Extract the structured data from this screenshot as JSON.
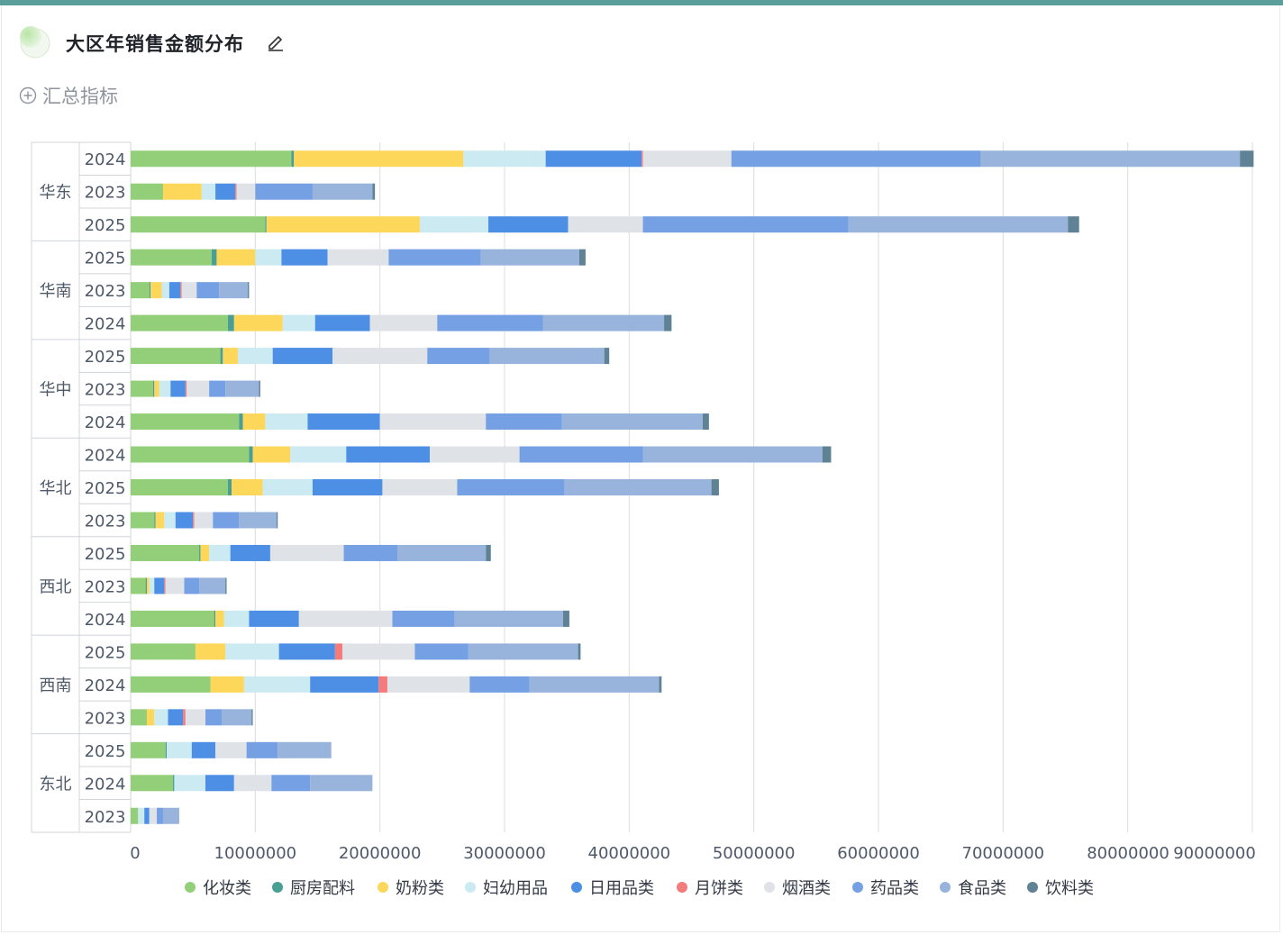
{
  "header": {
    "title": "大区年销售金额分布",
    "edit_icon": "pencil-icon",
    "add_metric_label": "汇总指标",
    "add_metric_icon": "plus-circle-icon"
  },
  "chart_data": {
    "type": "bar",
    "orientation": "horizontal",
    "stacked": true,
    "title": "",
    "xlabel": "",
    "ylabel": "",
    "xlim": [
      0,
      90000000
    ],
    "x_ticks": [
      "0",
      "10000000",
      "20000000",
      "30000000",
      "40000000",
      "50000000",
      "60000000",
      "70000000",
      "80000000",
      "90000000"
    ],
    "grid": true,
    "legend_position": "bottom",
    "series_names": [
      "化妆类",
      "厨房配料",
      "奶粉类",
      "妇幼用品",
      "日用品类",
      "月饼类",
      "烟酒类",
      "药品类",
      "食品类",
      "饮料类"
    ],
    "series_colors": [
      "#93cf78",
      "#4a9f94",
      "#fdd75a",
      "#cbeaf1",
      "#4c8fe4",
      "#f47b7b",
      "#dfe3e8",
      "#75a0e4",
      "#98b3dc",
      "#5f8295"
    ],
    "regions": [
      {
        "name": "华东",
        "rows": [
          {
            "year": "2024",
            "values": [
              12900000,
              200000,
              13600000,
              6600000,
              7700000,
              100000,
              7100000,
              20000000,
              20800000,
              1100000
            ]
          },
          {
            "year": "2023",
            "values": [
              2600000,
              0,
              3100000,
              1100000,
              1600000,
              100000,
              1500000,
              4600000,
              4800000,
              200000
            ]
          },
          {
            "year": "2025",
            "values": [
              10800000,
              100000,
              12300000,
              5500000,
              6400000,
              0,
              6000000,
              16500000,
              17600000,
              900000
            ]
          }
        ]
      },
      {
        "name": "华南",
        "rows": [
          {
            "year": "2025",
            "values": [
              6500000,
              400000,
              3100000,
              2100000,
              3700000,
              0,
              4900000,
              7400000,
              7900000,
              500000
            ]
          },
          {
            "year": "2023",
            "values": [
              1500000,
              100000,
              900000,
              600000,
              900000,
              100000,
              1200000,
              1800000,
              2300000,
              100000
            ]
          },
          {
            "year": "2024",
            "values": [
              7800000,
              500000,
              3900000,
              2600000,
              4400000,
              0,
              5400000,
              8500000,
              9700000,
              600000
            ]
          }
        ]
      },
      {
        "name": "华中",
        "rows": [
          {
            "year": "2025",
            "values": [
              7200000,
              200000,
              1200000,
              2800000,
              4800000,
              0,
              7600000,
              5000000,
              9200000,
              400000
            ]
          },
          {
            "year": "2023",
            "values": [
              1800000,
              100000,
              400000,
              900000,
              1200000,
              100000,
              1800000,
              1300000,
              2700000,
              100000
            ]
          },
          {
            "year": "2024",
            "values": [
              8700000,
              300000,
              1800000,
              3400000,
              5800000,
              0,
              8500000,
              6100000,
              11300000,
              500000
            ]
          }
        ]
      },
      {
        "name": "华北",
        "rows": [
          {
            "year": "2024",
            "values": [
              9500000,
              300000,
              3000000,
              4500000,
              6700000,
              0,
              7200000,
              9900000,
              14400000,
              700000
            ]
          },
          {
            "year": "2025",
            "values": [
              7800000,
              300000,
              2500000,
              4000000,
              5600000,
              0,
              6000000,
              8600000,
              11800000,
              600000
            ]
          },
          {
            "year": "2023",
            "values": [
              1900000,
              100000,
              700000,
              900000,
              1400000,
              100000,
              1500000,
              2100000,
              3000000,
              100000
            ]
          }
        ]
      },
      {
        "name": "西北",
        "rows": [
          {
            "year": "2025",
            "values": [
              5500000,
              100000,
              700000,
              1700000,
              3200000,
              0,
              5900000,
              4300000,
              7100000,
              400000
            ]
          },
          {
            "year": "2023",
            "values": [
              1200000,
              100000,
              200000,
              400000,
              800000,
              100000,
              1500000,
              1200000,
              2100000,
              100000
            ]
          },
          {
            "year": "2024",
            "values": [
              6700000,
              100000,
              700000,
              2000000,
              4000000,
              0,
              7500000,
              5000000,
              8700000,
              500000
            ]
          }
        ]
      },
      {
        "name": "西南",
        "rows": [
          {
            "year": "2025",
            "values": [
              5200000,
              0,
              2400000,
              4300000,
              4500000,
              600000,
              5800000,
              4300000,
              8800000,
              200000
            ]
          },
          {
            "year": "2024",
            "values": [
              6400000,
              0,
              2700000,
              5300000,
              5500000,
              700000,
              6600000,
              4800000,
              10400000,
              200000
            ]
          },
          {
            "year": "2023",
            "values": [
              1300000,
              0,
              600000,
              1100000,
              1200000,
              200000,
              1600000,
              1300000,
              2400000,
              100000
            ]
          }
        ]
      },
      {
        "name": "东北",
        "rows": [
          {
            "year": "2025",
            "values": [
              2800000,
              100000,
              0,
              2000000,
              1900000,
              0,
              2500000,
              2500000,
              4300000,
              0
            ]
          },
          {
            "year": "2024",
            "values": [
              3400000,
              100000,
              0,
              2500000,
              2300000,
              0,
              3000000,
              3100000,
              5000000,
              0
            ]
          },
          {
            "year": "2023",
            "values": [
              600000,
              0,
              0,
              500000,
              400000,
              0,
              600000,
              500000,
              1300000,
              0
            ]
          }
        ]
      }
    ]
  }
}
